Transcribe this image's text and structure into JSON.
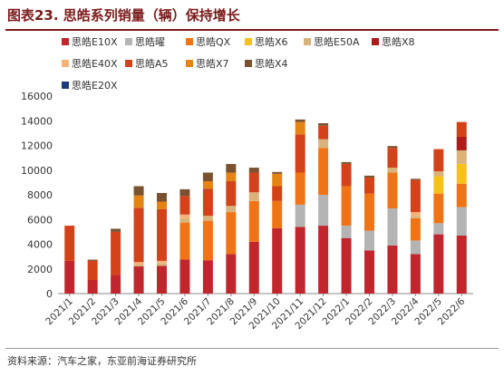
{
  "title": "图表23.  思皓系列销量（辆）保持增长",
  "source": "资料来源：汽车之家，东亚前海证券研究所",
  "chart_data": {
    "type": "bar",
    "stacked": true,
    "title": "图表23.  思皓系列销量（辆）保持增长",
    "xlabel": "",
    "ylabel": "",
    "ylim": [
      0,
      16000
    ],
    "yticks": [
      0,
      2000,
      4000,
      6000,
      8000,
      10000,
      12000,
      14000,
      16000
    ],
    "grid": false,
    "legend_position": "top",
    "categories": [
      "2021/1",
      "2021/2",
      "2021/3",
      "2021/4",
      "2021/5",
      "2021/6",
      "2021/7",
      "2021/8",
      "2021/9",
      "2021/10",
      "2021/11",
      "2021/12",
      "2022/1",
      "2022/2",
      "2022/3",
      "2022/4",
      "2022/5",
      "2022/6"
    ],
    "series": [
      {
        "name": "思皓E10X",
        "color": "#c0262c",
        "values": [
          2650,
          1100,
          1500,
          2200,
          2250,
          2750,
          2700,
          3200,
          4200,
          5300,
          5400,
          5500,
          4500,
          3500,
          3900,
          3200,
          4800,
          4700
        ]
      },
      {
        "name": "思皓曜",
        "color": "#b4b4b4",
        "values": [
          0,
          0,
          0,
          0,
          0,
          0,
          0,
          0,
          0,
          0,
          1800,
          2500,
          1000,
          1600,
          3000,
          1100,
          900,
          2300
        ]
      },
      {
        "name": "思皓QX",
        "color": "#f07416",
        "values": [
          0,
          0,
          0,
          0,
          0,
          3000,
          3200,
          3400,
          3300,
          2200,
          2600,
          3800,
          3200,
          3000,
          2900,
          1800,
          2400,
          1900
        ]
      },
      {
        "name": "思皓X6",
        "color": "#f6c21a",
        "values": [
          0,
          0,
          0,
          0,
          0,
          0,
          0,
          0,
          0,
          0,
          0,
          0,
          0,
          0,
          0,
          0,
          1400,
          1600
        ]
      },
      {
        "name": "思皓E50A",
        "color": "#d9b37a",
        "values": [
          0,
          0,
          0,
          150,
          200,
          350,
          400,
          500,
          700,
          0,
          0,
          700,
          0,
          0,
          400,
          200,
          400,
          1100
        ]
      },
      {
        "name": "思皓X8",
        "color": "#b01a1a",
        "values": [
          0,
          0,
          0,
          0,
          0,
          0,
          0,
          0,
          0,
          0,
          0,
          0,
          0,
          0,
          0,
          0,
          0,
          1100
        ]
      },
      {
        "name": "思皓E40X",
        "color": "#f7b27a",
        "values": [
          0,
          0,
          0,
          200,
          200,
          300,
          0,
          0,
          0,
          0,
          0,
          0,
          0,
          0,
          0,
          300,
          0,
          0
        ]
      },
      {
        "name": "思皓A5",
        "color": "#d4421a",
        "values": [
          2850,
          1550,
          3500,
          4400,
          4200,
          1500,
          2200,
          2000,
          1600,
          1200,
          3100,
          1100,
          1800,
          1300,
          1600,
          2600,
          1800,
          1200
        ]
      },
      {
        "name": "思皓X7",
        "color": "#e58412",
        "values": [
          0,
          0,
          0,
          1000,
          600,
          0,
          600,
          700,
          0,
          1000,
          1000,
          0,
          0,
          0,
          0,
          0,
          0,
          0
        ]
      },
      {
        "name": "思皓X4",
        "color": "#7a5230",
        "values": [
          0,
          100,
          250,
          750,
          700,
          550,
          700,
          700,
          400,
          150,
          200,
          200,
          150,
          150,
          150,
          100,
          0,
          0
        ]
      },
      {
        "name": "思皓E20X",
        "color": "#1f3a7a",
        "values": [
          0,
          0,
          0,
          0,
          0,
          0,
          0,
          0,
          0,
          0,
          0,
          0,
          0,
          0,
          0,
          0,
          0,
          0
        ]
      }
    ]
  }
}
